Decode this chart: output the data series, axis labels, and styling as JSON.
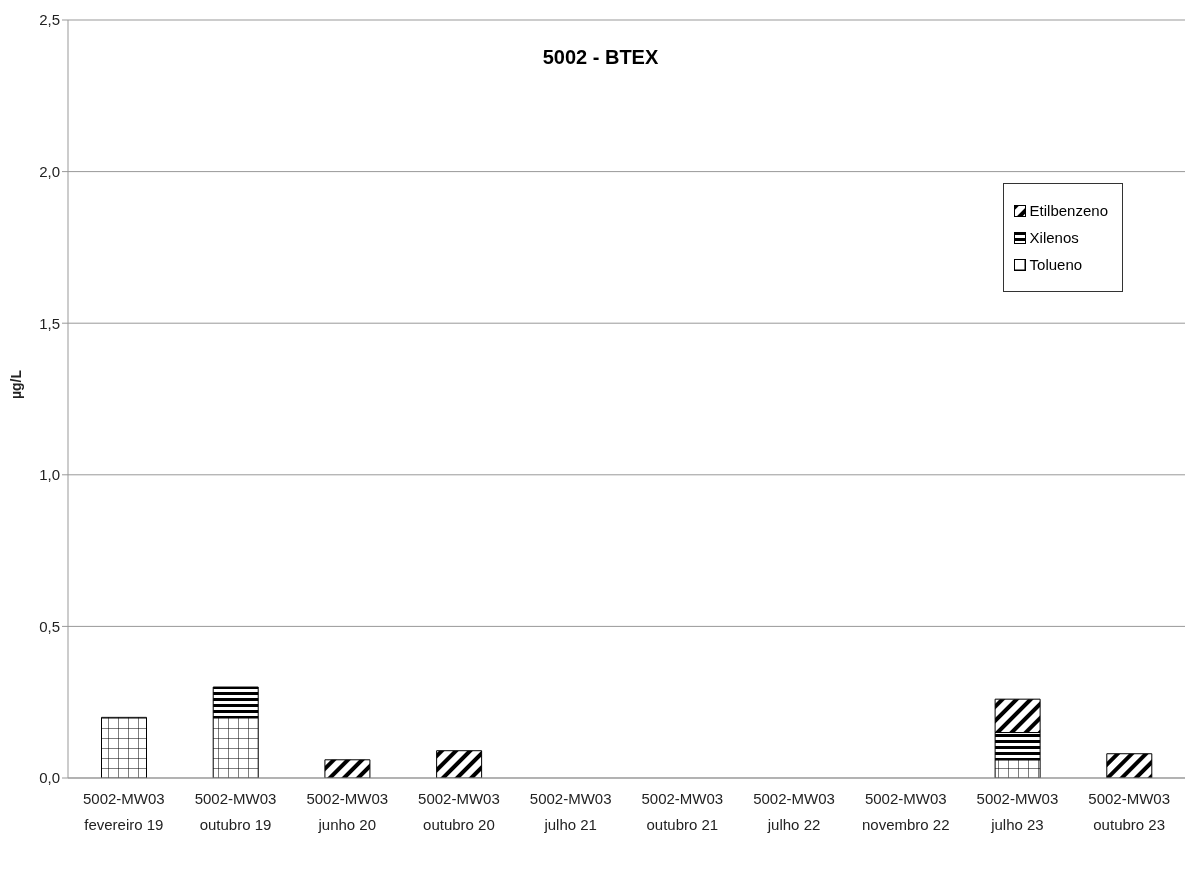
{
  "chart_data": {
    "type": "bar",
    "title": "5002 - BTEX",
    "ylabel": "µg/L",
    "stacked": true,
    "categories": [
      "5002-MW03\nfevereiro 19",
      "5002-MW03\noutubro 19",
      "5002-MW03\njunho 20",
      "5002-MW03\noutubro 20",
      "5002-MW03\njulho 21",
      "5002-MW03\noutubro 21",
      "5002-MW03\njulho 22",
      "5002-MW03\nnovembro 22",
      "5002-MW03\njulho 23",
      "5002-MW03\noutubro 23"
    ],
    "series": [
      {
        "name": "Tolueno",
        "color": "#000000",
        "values": [
          0.2,
          0.2,
          null,
          null,
          null,
          null,
          null,
          null,
          0.06,
          null
        ]
      },
      {
        "name": "Xilenos",
        "color": "#000000",
        "values": [
          null,
          0.1,
          null,
          null,
          null,
          null,
          null,
          null,
          0.09,
          null
        ]
      },
      {
        "name": "Etilbenzeno",
        "color": "#000000",
        "values": [
          null,
          null,
          0.06,
          0.09,
          null,
          null,
          null,
          null,
          0.11,
          0.08
        ]
      }
    ],
    "ylim": [
      0,
      2.5
    ],
    "yticks": [
      {
        "value": 0,
        "label": "0,0"
      },
      {
        "value": 0.5,
        "label": "0,5"
      },
      {
        "value": 1,
        "label": "1,0"
      },
      {
        "value": 1.5,
        "label": "1,5"
      },
      {
        "value": 2,
        "label": "2,0"
      },
      {
        "value": 2.5,
        "label": "2,5"
      }
    ],
    "grid": "y",
    "legend": "top right"
  }
}
